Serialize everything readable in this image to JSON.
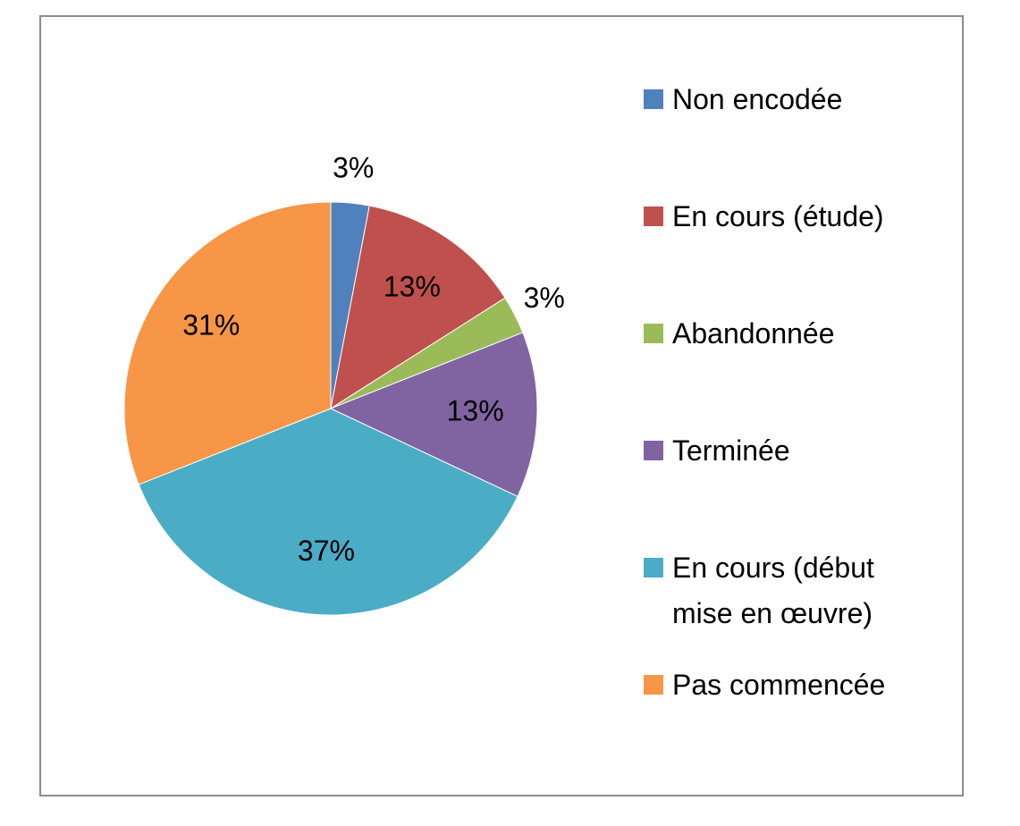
{
  "chart_data": {
    "type": "pie",
    "categories": [
      "Non encodée",
      "En cours (étude)",
      "Abandonnée",
      "Terminée",
      "En cours (début mise en œuvre)",
      "Pas commencée"
    ],
    "values": [
      3,
      13,
      3,
      13,
      37,
      31
    ],
    "value_labels": [
      "3%",
      "13%",
      "3%",
      "13%",
      "37%",
      "31%"
    ],
    "colors": [
      "#4f81bd",
      "#c0504d",
      "#9bbb59",
      "#8064a2",
      "#4bacc6",
      "#f79646"
    ],
    "legend": "right"
  }
}
